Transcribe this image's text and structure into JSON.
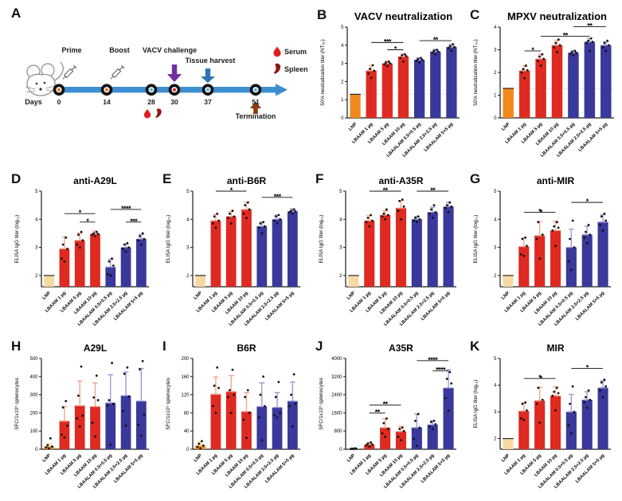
{
  "figure": {
    "background": "#ffffff"
  },
  "colors": {
    "lnp_bright": "#F08A1E",
    "lnp_tan": "#F8D9A2",
    "red": "#DE2A21",
    "blue": "#39389B",
    "err_red": "#F4A58C",
    "err_blue": "#9D99D6",
    "err_orange": "#F5C97E",
    "threshold_line": "#BBBBBB",
    "timeline_blue": "#3E8FD0",
    "challenge_arrow_purple": "#7030A0",
    "harvest_arrow_blue": "#2E75B6",
    "termination_arrow_brown": "#8A3D0F",
    "serum_red": "#E02020",
    "spleen_darkred": "#8C1A15",
    "dot_orange": "#E87511",
    "dot_cyan": "#41B6E6",
    "dot_red": "#D31F26"
  },
  "panelA": {
    "letter": "A",
    "days": [
      "0",
      "14",
      "28",
      "30",
      "37",
      "51"
    ],
    "labels": {
      "days_axis": "Days",
      "prime": "Prime",
      "boost": "Boost",
      "vacv_challenge": "VACV challenge",
      "tissue_harvest": "Tissue harvest",
      "termination": "Termination",
      "serum": "Serum",
      "spleen": "Spleen"
    }
  },
  "chart_data": [
    {
      "letter": "B",
      "type": "bar",
      "title": "VACV neutralization",
      "ylabel": "50% neutralization titer (NT₅₀)",
      "ylim": [
        0,
        5
      ],
      "yticks": [
        0,
        1,
        2,
        3,
        4,
        5
      ],
      "threshold": 1.3,
      "categories": [
        "LNP",
        "LBAAM 1 µg",
        "LBAAM 5 µg",
        "LBAAM 10 µg",
        "LBAALAM 0.5+0.5 µg",
        "LBAALAM 2.5+2.5 µg",
        "LBAALAM 5+5 µg"
      ],
      "values": [
        1.3,
        2.6,
        3.0,
        3.38,
        3.2,
        3.65,
        3.9
      ],
      "errors": [
        0,
        0.28,
        0.12,
        0.15,
        0.1,
        0.12,
        0.15
      ],
      "points": [
        [
          1.3,
          1.3,
          1.3,
          1.3,
          1.3
        ],
        [
          2.2,
          2.45,
          2.6,
          2.7,
          2.9
        ],
        [
          2.85,
          2.95,
          3.0,
          3.05,
          3.1
        ],
        [
          3.1,
          3.3,
          3.4,
          3.45,
          3.5
        ],
        [
          3.05,
          3.15,
          3.2,
          3.25,
          3.3
        ],
        [
          3.5,
          3.6,
          3.65,
          3.7,
          3.75
        ],
        [
          3.7,
          3.85,
          3.9,
          3.95,
          4.05
        ]
      ],
      "bar_colors": [
        "lnp_bright",
        "red",
        "red",
        "red",
        "blue",
        "blue",
        "blue"
      ],
      "sig": [
        {
          "from": 1,
          "to": 3,
          "y": 4.15,
          "label": "***"
        },
        {
          "from": 2,
          "to": 3,
          "y": 3.75,
          "label": "*"
        },
        {
          "from": 4,
          "to": 6,
          "y": 4.25,
          "label": "**"
        }
      ]
    },
    {
      "letter": "C",
      "type": "bar",
      "title": "MPXV neutralization",
      "ylabel": "50% neutralization titer (NT₅₀)",
      "ylim": [
        0,
        4
      ],
      "yticks": [
        0,
        1,
        2,
        3,
        4
      ],
      "threshold": 1.3,
      "categories": [
        "LNP",
        "LBAAM 1 µg",
        "LBAAM 5 µg",
        "LBAAM 10 µg",
        "LBAALAM 0.5+0.5 µg",
        "LBAALAM 2.5+2.5 µg",
        "LBAALAM 5+5 µg"
      ],
      "values": [
        1.3,
        2.08,
        2.6,
        3.2,
        2.87,
        3.35,
        3.2
      ],
      "errors": [
        0,
        0.2,
        0.2,
        0.22,
        0.1,
        0.15,
        0.15
      ],
      "points": [
        [
          1.3,
          1.3,
          1.3,
          1.3,
          1.3
        ],
        [
          1.75,
          2.0,
          2.1,
          2.15,
          2.3
        ],
        [
          2.3,
          2.5,
          2.6,
          2.7,
          2.8
        ],
        [
          2.9,
          3.1,
          3.2,
          3.3,
          3.45
        ],
        [
          2.75,
          2.82,
          2.87,
          2.9,
          2.95
        ],
        [
          2.95,
          3.3,
          3.35,
          3.4,
          3.5
        ],
        [
          2.95,
          3.1,
          3.2,
          3.3,
          3.4
        ]
      ],
      "bar_colors": [
        "lnp_bright",
        "red",
        "red",
        "red",
        "blue",
        "blue",
        "blue"
      ],
      "sig": [
        {
          "from": 1,
          "to": 2,
          "y": 2.95,
          "label": "*"
        },
        {
          "from": 2,
          "to": 5,
          "y": 3.6,
          "label": "**"
        },
        {
          "from": 4,
          "to": 6,
          "y": 4.02,
          "label": "**"
        }
      ]
    },
    {
      "letter": "D",
      "type": "bar",
      "title": "anti-A29L",
      "ylabel": "ELISA IgG titer (log₁₀)",
      "ylim": [
        1.6,
        5
      ],
      "yticks": [
        2,
        3,
        4,
        5
      ],
      "categories": [
        "LNP",
        "LBAAM 1 µg",
        "LBAAM 5 µg",
        "LBAAM 10 µg",
        "LBAALAM 0.5+0.5 µg",
        "LBAALAM 2.5+2.5 µg",
        "LBAALAM 5+5 µg"
      ],
      "values": [
        2.0,
        2.95,
        3.25,
        3.48,
        2.3,
        3.0,
        3.3
      ],
      "errors": [
        0,
        0.42,
        0.26,
        0.1,
        0.28,
        0.12,
        0.16
      ],
      "points": [
        [
          2,
          2,
          2,
          2,
          2
        ],
        [
          2.5,
          2.6,
          2.95,
          3.1,
          3.35
        ],
        [
          3.0,
          3.1,
          3.25,
          3.45,
          3.55
        ],
        [
          3.4,
          3.45,
          3.48,
          3.5,
          3.55
        ],
        [
          2.0,
          2.05,
          2.35,
          2.5,
          2.6
        ],
        [
          2.85,
          2.95,
          3.0,
          3.1,
          3.15
        ],
        [
          3.1,
          3.25,
          3.3,
          3.4,
          3.5
        ]
      ],
      "bar_colors": [
        "lnp_tan",
        "red",
        "red",
        "red",
        "blue",
        "blue",
        "blue"
      ],
      "sig": [
        {
          "from": 1,
          "to": 3,
          "y": 4.2,
          "label": "*"
        },
        {
          "from": 2,
          "to": 3,
          "y": 3.9,
          "label": "*"
        },
        {
          "from": 4,
          "to": 6,
          "y": 4.35,
          "label": "****"
        },
        {
          "from": 5,
          "to": 6,
          "y": 3.9,
          "label": "***"
        }
      ]
    },
    {
      "letter": "E",
      "type": "bar",
      "title": "anti-B6R",
      "ylabel": "ELISA IgG titer (log₁₀)",
      "ylim": [
        1.6,
        5
      ],
      "yticks": [
        2,
        3,
        4,
        5
      ],
      "categories": [
        "LNP",
        "LBAAM 1 µg",
        "LBAAM 5 µg",
        "LBAAM 10 µg",
        "LBAALAM 0.5+0.5 µg",
        "LBAALAM 2.5+2.5 µg",
        "LBAALAM 5+5 µg"
      ],
      "values": [
        2.0,
        3.95,
        4.1,
        4.35,
        3.75,
        4.0,
        4.28
      ],
      "errors": [
        0,
        0.22,
        0.18,
        0.25,
        0.15,
        0.15,
        0.09
      ],
      "points": [
        [
          2,
          2,
          2,
          2,
          2
        ],
        [
          3.7,
          3.85,
          3.95,
          4.1,
          4.2
        ],
        [
          3.85,
          4.05,
          4.1,
          4.2,
          4.3
        ],
        [
          4.05,
          4.2,
          4.35,
          4.5,
          4.6
        ],
        [
          3.5,
          3.7,
          3.75,
          3.85,
          3.9
        ],
        [
          3.85,
          3.95,
          4.0,
          4.1,
          4.15
        ],
        [
          4.2,
          4.25,
          4.28,
          4.3,
          4.35
        ]
      ],
      "bar_colors": [
        "lnp_tan",
        "red",
        "red",
        "red",
        "blue",
        "blue",
        "blue"
      ],
      "sig": [
        {
          "from": 1,
          "to": 3,
          "y": 5.0,
          "label": "*"
        },
        {
          "from": 4,
          "to": 6,
          "y": 4.78,
          "label": "***"
        }
      ]
    },
    {
      "letter": "F",
      "type": "bar",
      "title": "anti-A35R",
      "ylabel": "ELISA IgG titer (log₁₀)",
      "ylim": [
        1.6,
        5
      ],
      "yticks": [
        2,
        3,
        4,
        5
      ],
      "categories": [
        "LNP",
        "LBAAM 1 µg",
        "LBAAM 5 µg",
        "LBAAM 10 µg",
        "LBAALAM 0.5+0.5 µg",
        "LBAALAM 2.5+2.5 µg",
        "LBAALAM 5+5 µg"
      ],
      "values": [
        2.0,
        3.95,
        4.15,
        4.4,
        4.0,
        4.25,
        4.45
      ],
      "errors": [
        0,
        0.18,
        0.15,
        0.27,
        0.1,
        0.18,
        0.15
      ],
      "points": [
        [
          2,
          2,
          2,
          2,
          2
        ],
        [
          3.75,
          3.9,
          3.95,
          4.05,
          4.15
        ],
        [
          4.0,
          4.1,
          4.15,
          4.2,
          4.35
        ],
        [
          4.0,
          4.3,
          4.45,
          4.65,
          4.7
        ],
        [
          3.9,
          3.95,
          4.0,
          4.05,
          4.1
        ],
        [
          4.05,
          4.2,
          4.25,
          4.35,
          4.5
        ],
        [
          4.25,
          4.4,
          4.45,
          4.5,
          4.6
        ]
      ],
      "bar_colors": [
        "lnp_tan",
        "red",
        "red",
        "red",
        "blue",
        "blue",
        "blue"
      ],
      "sig": [
        {
          "from": 1,
          "to": 3,
          "y": 5.0,
          "label": "**"
        },
        {
          "from": 4,
          "to": 6,
          "y": 5.0,
          "label": "**"
        }
      ]
    },
    {
      "letter": "G",
      "type": "bar",
      "title": "anti-MIR",
      "ylabel": "ELISA IgG titer (log₁₀)",
      "ylim": [
        1.6,
        5
      ],
      "yticks": [
        2,
        3,
        4,
        5
      ],
      "categories": [
        "LNP",
        "LBAAM 1 µg",
        "LBAAM 5 µg",
        "LBAAM 10 µg",
        "LBAALAM 0.5+0.5 µg",
        "LBAALAM 2.5+2.5 µg",
        "LBAALAM 5+5 µg"
      ],
      "values": [
        2.0,
        3.03,
        3.42,
        3.6,
        3.0,
        3.45,
        3.9
      ],
      "errors": [
        0,
        0.3,
        0.5,
        0.33,
        0.65,
        0.3,
        0.26
      ],
      "points": [
        [
          2,
          2,
          2,
          2,
          2
        ],
        [
          2.7,
          2.75,
          3.05,
          3.3,
          3.35
        ],
        [
          2.6,
          3.3,
          3.45,
          3.9,
          4.3
        ],
        [
          3.05,
          3.6,
          3.7,
          3.75,
          3.9
        ],
        [
          2.2,
          2.5,
          3.0,
          3.3,
          3.95
        ],
        [
          3.15,
          3.35,
          3.45,
          3.55,
          3.8
        ],
        [
          3.6,
          3.8,
          3.95,
          4.1,
          4.2
        ]
      ],
      "bar_colors": [
        "lnp_tan",
        "red",
        "red",
        "red",
        "blue",
        "blue",
        "blue"
      ],
      "sig": [
        {
          "from": 1,
          "to": 3,
          "y": 4.25,
          "label": "*"
        },
        {
          "from": 4,
          "to": 6,
          "y": 4.6,
          "label": "*"
        }
      ]
    },
    {
      "letter": "H",
      "type": "bar",
      "title": "A29L",
      "ylabel": "SFC/1x10⁶ splenocytes",
      "ylim": [
        0,
        500
      ],
      "yticks": [
        0,
        100,
        200,
        300,
        400,
        500
      ],
      "categories": [
        "LNP",
        "LBAAM 1 µg",
        "LBAAM 5 µg",
        "LBAAM 10 µg",
        "LBAALAM 0.5+0.5 µg",
        "LBAALAM 2.5+2.5 µg",
        "LBAALAM 5+5 µg"
      ],
      "values": [
        15,
        155,
        240,
        235,
        255,
        295,
        265
      ],
      "errors": [
        15,
        80,
        135,
        130,
        155,
        130,
        180
      ],
      "points": [
        [
          5,
          10,
          15,
          22,
          60
        ],
        [
          65,
          80,
          130,
          230,
          265
        ],
        [
          125,
          170,
          185,
          295,
          455
        ],
        [
          70,
          145,
          270,
          285,
          405
        ],
        [
          25,
          240,
          250,
          270,
          475
        ],
        [
          130,
          210,
          290,
          415,
          450
        ],
        [
          75,
          135,
          190,
          440,
          485
        ]
      ],
      "bar_colors": [
        "lnp_bright",
        "red",
        "red",
        "red",
        "blue",
        "blue",
        "blue"
      ],
      "sig": []
    },
    {
      "letter": "I",
      "type": "bar",
      "title": "B6R",
      "ylabel": "SFC/1x10⁶ splenocytes",
      "ylim": [
        0,
        200
      ],
      "yticks": [
        0,
        40,
        80,
        120,
        160,
        200
      ],
      "categories": [
        "LNP",
        "LBAAM 1 µg",
        "LBAAM 5 µg",
        "LBAAM 10 µg",
        "LBAALAM 0.5+0.5 µg",
        "LBAALAM 2.5+2.5 µg",
        "LBAALAM 5+5 µg"
      ],
      "values": [
        8,
        121,
        127,
        83,
        94,
        92,
        106
      ],
      "errors": [
        8,
        38,
        35,
        42,
        52,
        33,
        42
      ],
      "points": [
        [
          2,
          5,
          8,
          12,
          18
        ],
        [
          80,
          95,
          135,
          140,
          180
        ],
        [
          80,
          115,
          120,
          130,
          175
        ],
        [
          25,
          65,
          80,
          115,
          130
        ],
        [
          20,
          70,
          95,
          120,
          160
        ],
        [
          70,
          75,
          80,
          115,
          148
        ],
        [
          50,
          95,
          100,
          120,
          165
        ]
      ],
      "bar_colors": [
        "lnp_bright",
        "red",
        "red",
        "red",
        "blue",
        "blue",
        "blue"
      ],
      "sig": []
    },
    {
      "letter": "J",
      "type": "bar",
      "title": "A35R",
      "ylabel": "SFC/1x10⁶ splenocytes",
      "ylim": [
        0,
        4000
      ],
      "yticks": [
        0,
        800,
        1600,
        2400,
        3200,
        4000
      ],
      "categories": [
        "LNP",
        "LBAAM 1 µg",
        "LBAAM 5 µg",
        "LBAAM 10 µg",
        "LBAALAM 0.5+0.5 µg",
        "LBAALAM 2.5+2.5 µg",
        "LBAALAM 5+5 µg"
      ],
      "values": [
        25,
        210,
        950,
        780,
        950,
        1080,
        2700
      ],
      "errors": [
        15,
        80,
        400,
        230,
        600,
        180,
        800
      ],
      "points": [
        [
          5,
          10,
          20,
          30,
          45
        ],
        [
          120,
          180,
          210,
          250,
          300
        ],
        [
          550,
          700,
          900,
          1150,
          1350
        ],
        [
          400,
          550,
          800,
          900,
          950
        ],
        [
          150,
          450,
          950,
          1250,
          1550
        ],
        [
          900,
          1000,
          1100,
          1200,
          1250
        ],
        [
          1700,
          2250,
          2900,
          3100,
          3400
        ]
      ],
      "bar_colors": [
        "lnp_bright",
        "red",
        "red",
        "red",
        "blue",
        "blue",
        "blue"
      ],
      "sig": [
        {
          "from": 1,
          "to": 2,
          "y": 1600,
          "label": "**"
        },
        {
          "from": 1,
          "to": 3,
          "y": 1950,
          "label": "**"
        },
        {
          "from": 5,
          "to": 6,
          "y": 3450,
          "label": "****"
        },
        {
          "from": 4,
          "to": 6,
          "y": 3900,
          "label": "****"
        }
      ]
    },
    {
      "letter": "K",
      "type": "bar",
      "title": "MIR",
      "ylabel": "ELISA IgG titer (log₁₀)",
      "ylim": [
        1.6,
        5
      ],
      "yticks": [
        2,
        3,
        4,
        5
      ],
      "categories": [
        "LNP",
        "LBAAM 1 µg",
        "LBAAM 5 µg",
        "LBAAM 10 µg",
        "LBAALAM 0.5+0.5 µg",
        "LBAALAM 2.5+2.5 µg",
        "LBAALAM 5+5 µg"
      ],
      "values": [
        2.0,
        3.03,
        3.42,
        3.6,
        3.0,
        3.45,
        3.9
      ],
      "errors": [
        0,
        0.3,
        0.5,
        0.33,
        0.65,
        0.3,
        0.26
      ],
      "points": [
        [
          2,
          2,
          2,
          2,
          2
        ],
        [
          2.7,
          2.75,
          3.05,
          3.3,
          3.35
        ],
        [
          2.6,
          3.3,
          3.45,
          3.9,
          4.3
        ],
        [
          3.05,
          3.6,
          3.7,
          3.75,
          3.9
        ],
        [
          2.2,
          2.5,
          3.0,
          3.3,
          3.95
        ],
        [
          3.15,
          3.35,
          3.45,
          3.55,
          3.8
        ],
        [
          3.55,
          3.8,
          3.95,
          4.1,
          4.2
        ]
      ],
      "bar_colors": [
        "lnp_tan",
        "red",
        "red",
        "red",
        "blue",
        "blue",
        "blue"
      ],
      "sig": [
        {
          "from": 1,
          "to": 3,
          "y": 4.25,
          "label": "*"
        },
        {
          "from": 4,
          "to": 6,
          "y": 4.63,
          "label": "*"
        }
      ]
    }
  ]
}
